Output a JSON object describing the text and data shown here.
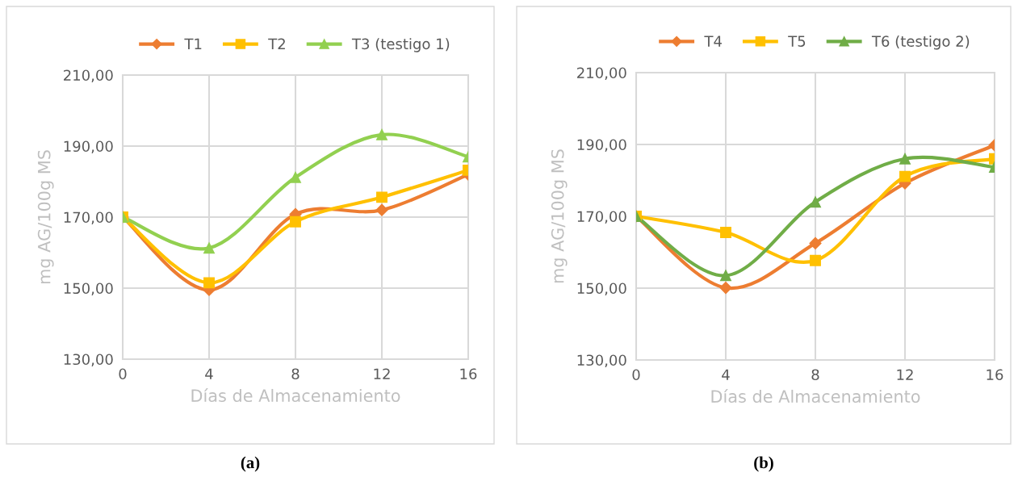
{
  "chart_data": [
    {
      "type": "line",
      "xlabel": "Días de Almacenamiento",
      "ylabel": "mg AG/100g MS",
      "x": [
        0,
        4,
        8,
        12,
        16
      ],
      "xlim": [
        0,
        16
      ],
      "xticks": [
        0,
        4,
        8,
        12,
        16
      ],
      "ylim": [
        130,
        210
      ],
      "yticks": [
        {
          "value": 130,
          "label": "130,00"
        },
        {
          "value": 150,
          "label": "150,00"
        },
        {
          "value": 170,
          "label": "170,00"
        },
        {
          "value": 190,
          "label": "190,00"
        },
        {
          "value": 210,
          "label": "210,00"
        }
      ],
      "grid": true,
      "legend": "top",
      "line_style": "solid",
      "annotations": [
        "(a)"
      ],
      "series": [
        {
          "name": "T1",
          "color": "#ed7d31",
          "marker": "diamond",
          "values": [
            170,
            149.5,
            170.8,
            172,
            182
          ]
        },
        {
          "name": "T2",
          "color": "#ffc000",
          "marker": "square",
          "values": [
            170,
            151.5,
            168.7,
            175.6,
            183.2
          ]
        },
        {
          "name": "T3 (testigo 1)",
          "color": "#92d050",
          "marker": "triangle",
          "values": [
            170,
            161.3,
            181.2,
            193.2,
            187
          ]
        }
      ]
    },
    {
      "type": "line",
      "xlabel": "Días de Almacenamiento",
      "ylabel": "mg AG/100g MS",
      "x": [
        0,
        4,
        8,
        12,
        16
      ],
      "xlim": [
        0,
        16
      ],
      "xticks": [
        0,
        4,
        8,
        12,
        16
      ],
      "ylim": [
        130,
        210
      ],
      "yticks": [
        {
          "value": 130,
          "label": "130,00"
        },
        {
          "value": 150,
          "label": "150,00"
        },
        {
          "value": 170,
          "label": "170,00"
        },
        {
          "value": 190,
          "label": "190,00"
        },
        {
          "value": 210,
          "label": "210,00"
        }
      ],
      "grid": true,
      "legend": "top",
      "line_style": "solid",
      "annotations": [
        "(b)"
      ],
      "series": [
        {
          "name": "T4",
          "color": "#ed7d31",
          "marker": "diamond",
          "values": [
            170,
            150.1,
            162.5,
            179.2,
            189.8
          ]
        },
        {
          "name": "T5",
          "color": "#ffc000",
          "marker": "square",
          "values": [
            170,
            165.5,
            157.7,
            181.1,
            186
          ]
        },
        {
          "name": "T6 (testigo 2)",
          "color": "#70ad47",
          "marker": "triangle",
          "values": [
            170,
            153.5,
            174,
            186,
            183.7
          ]
        }
      ]
    }
  ]
}
